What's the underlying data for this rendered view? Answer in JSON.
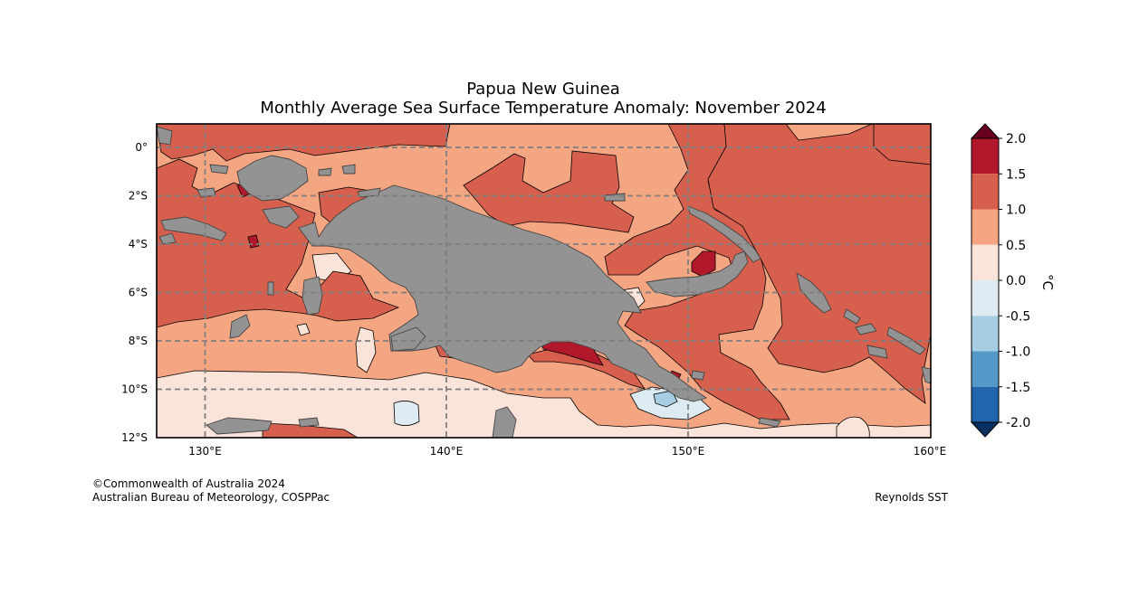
{
  "header": {
    "title_line1": "Papua New Guinea",
    "title_line2": "Monthly Average Sea Surface Temperature Anomaly: November 2024"
  },
  "map": {
    "lon_range": [
      128,
      160
    ],
    "lat_range": [
      -12,
      1
    ],
    "lat_tick_labels": [
      "0°",
      "2°S",
      "4°S",
      "6°S",
      "8°S",
      "10°S",
      "12°S"
    ],
    "lon_tick_labels": [
      "130°E",
      "140°E",
      "150°E",
      "160°E"
    ],
    "gridlines": "dashed",
    "land_color": "#939393"
  },
  "colorbar": {
    "unit_label": "°C",
    "tick_labels": [
      "2.0",
      "1.5",
      "1.0",
      "0.5",
      "0.0",
      "-0.5",
      "-1.0",
      "-1.5",
      "-2.0"
    ],
    "colors": {
      "above_2.0": "#67001f",
      "1.5_to_2.0": "#b2182b",
      "1.0_to_1.5": "#d6604d",
      "0.5_to_1.0": "#f4a582",
      "0.0_to_0.5": "#fae3d9",
      "-0.5_to_0.0": "#deebf2",
      "-1.0_to_-0.5": "#a6cde2",
      "-1.5_to_-1.0": "#5599c8",
      "-2.0_to_-1.5": "#2166ac",
      "below_-2.0": "#053061"
    }
  },
  "footer": {
    "copyright": "©Commonwealth of Australia 2024",
    "organisation": "Australian Bureau of Meteorology, COSPPac",
    "source": "Reynolds SST"
  }
}
